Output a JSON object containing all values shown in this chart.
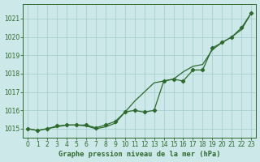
{
  "hours": [
    0,
    1,
    2,
    3,
    4,
    5,
    6,
    7,
    8,
    9,
    10,
    11,
    12,
    13,
    14,
    15,
    16,
    17,
    18,
    19,
    20,
    21,
    22,
    23
  ],
  "series1": [
    1015.0,
    1014.9,
    1015.0,
    1015.1,
    1015.2,
    1015.2,
    1015.15,
    1015.0,
    1015.1,
    1015.3,
    1015.9,
    1016.5,
    1017.0,
    1017.5,
    1017.6,
    1017.7,
    1018.1,
    1018.4,
    1018.5,
    1019.3,
    1019.7,
    1020.0,
    1020.4,
    1021.3
  ],
  "series2": [
    1015.0,
    1014.9,
    1015.0,
    1015.15,
    1015.2,
    1015.2,
    1015.2,
    1015.05,
    1015.2,
    1015.4,
    1015.9,
    1016.0,
    1015.9,
    1016.0,
    1017.6,
    1017.7,
    1017.6,
    1018.2,
    1018.2,
    1019.4,
    1019.7,
    1020.0,
    1020.5,
    1021.3
  ],
  "line_color": "#2d6a2d",
  "bg_color": "#cce8e8",
  "grid_color": "#a8cece",
  "title": "Graphe pression niveau de la mer (hPa)",
  "ylim_min": 1014.5,
  "ylim_max": 1021.8,
  "yticks": [
    1015,
    1016,
    1017,
    1018,
    1019,
    1020,
    1021
  ],
  "xlim_min": -0.5,
  "xlim_max": 23.5,
  "tick_fontsize": 5.5,
  "title_fontsize": 6.2
}
